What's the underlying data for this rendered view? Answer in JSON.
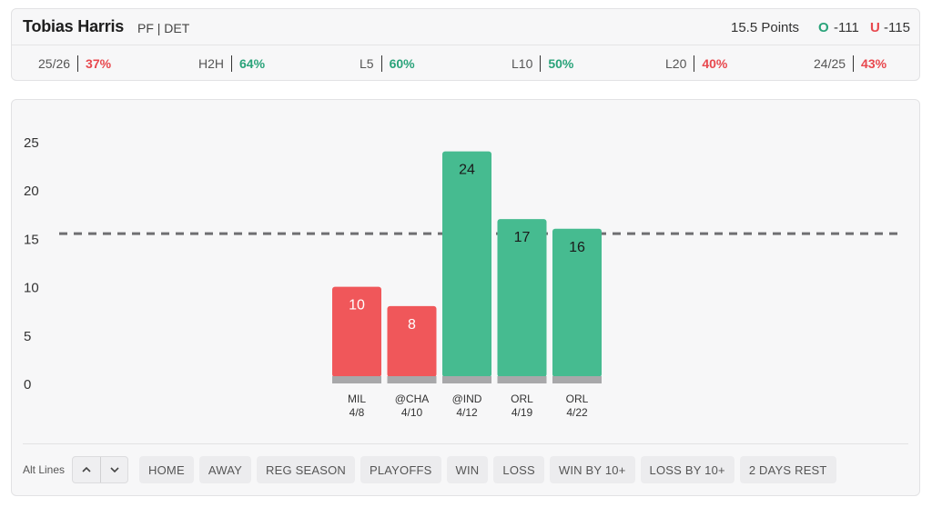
{
  "header": {
    "player_name": "Tobias Harris",
    "player_meta": "PF | DET",
    "prop_line": "15.5 Points",
    "over_label": "O",
    "over_odds": "-111",
    "under_label": "U",
    "under_odds": "-115"
  },
  "stats": [
    {
      "label": "25/26",
      "value": "37%",
      "status": "red"
    },
    {
      "label": "H2H",
      "value": "64%",
      "status": "green"
    },
    {
      "label": "L5",
      "value": "60%",
      "status": "green"
    },
    {
      "label": "L10",
      "value": "50%",
      "status": "green"
    },
    {
      "label": "L20",
      "value": "40%",
      "status": "red"
    },
    {
      "label": "24/25",
      "value": "43%",
      "status": "red"
    }
  ],
  "chart_data": {
    "type": "bar",
    "categories": [
      "MIL",
      "@CHA",
      "@IND",
      "ORL",
      "ORL"
    ],
    "dates": [
      "4/8",
      "4/10",
      "4/12",
      "4/19",
      "4/22"
    ],
    "values": [
      10,
      8,
      24,
      17,
      16
    ],
    "outcomes": [
      "under",
      "under",
      "over",
      "over",
      "over"
    ],
    "prop_line": 15.5,
    "ylim": [
      0,
      25
    ],
    "yticks": [
      0,
      5,
      10,
      15,
      20,
      25
    ],
    "title": "",
    "xlabel": "",
    "ylabel": ""
  },
  "colors": {
    "over": "#46bb90",
    "under": "#f0575a",
    "base": "#a8a8aa",
    "line": "#6f6f72",
    "green_text": "#2aa37a",
    "red_text": "#e8484e"
  },
  "filters": {
    "alt_lines_label": "Alt Lines",
    "up_icon": "chevron-up-icon",
    "down_icon": "chevron-down-icon",
    "chips": [
      "HOME",
      "AWAY",
      "REG SEASON",
      "PLAYOFFS",
      "WIN",
      "LOSS",
      "WIN BY 10+",
      "LOSS BY 10+",
      "2 DAYS REST"
    ]
  }
}
